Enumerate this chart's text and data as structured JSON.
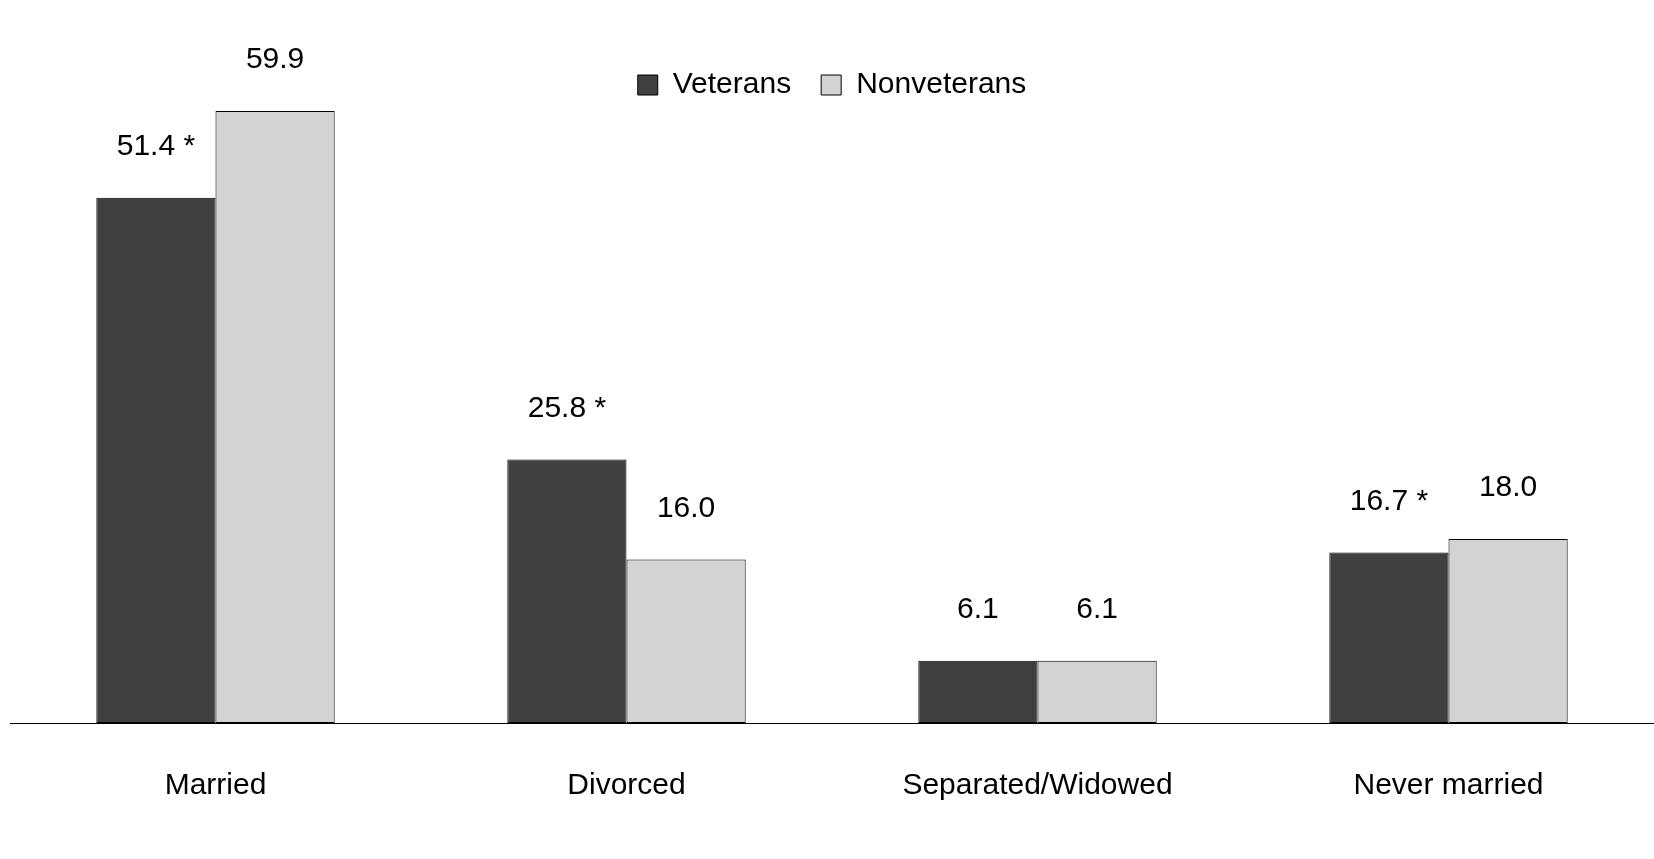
{
  "chart_data": {
    "type": "bar",
    "categories": [
      "Married",
      "Divorced",
      "Separated/Widowed",
      "Never married"
    ],
    "series": [
      {
        "name": "Veterans",
        "color": "#404040",
        "values": [
          51.4,
          25.8,
          6.1,
          16.7
        ],
        "value_labels": [
          "51.4 *",
          "25.8 *",
          "6.1",
          "16.7 *"
        ]
      },
      {
        "name": "Nonveterans",
        "color": "#d3d3d3",
        "values": [
          59.9,
          16.0,
          6.1,
          18.0
        ],
        "value_labels": [
          "59.9",
          "16.0",
          "6.1",
          "18.0"
        ]
      }
    ],
    "legend": "top",
    "tick_labels": "x"
  }
}
